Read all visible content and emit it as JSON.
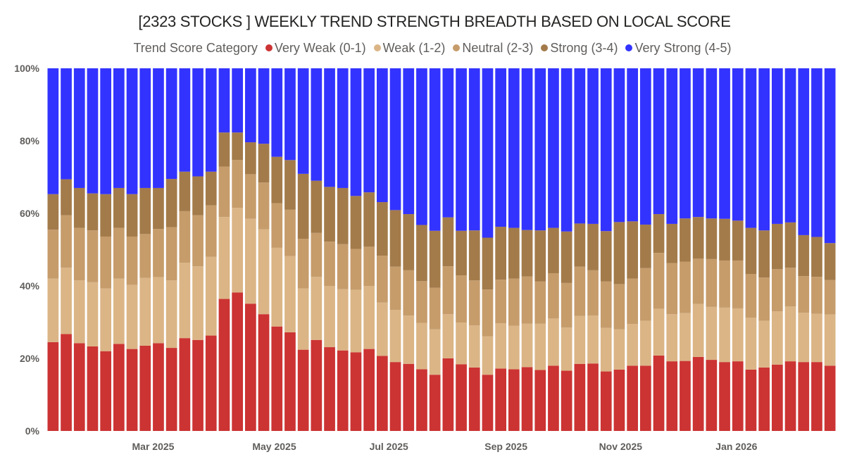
{
  "chart_data": {
    "type": "bar",
    "stacking": "percent",
    "title": "[2323 STOCKS ] WEEKLY TREND STRENGTH BREADTH BASED ON LOCAL SCORE",
    "legend_title": "Trend Score Category",
    "legend_position": "top-center",
    "xlabel": "",
    "ylabel": "",
    "ylim": [
      0,
      100
    ],
    "y_ticks": [
      "0%",
      "20%",
      "40%",
      "60%",
      "80%",
      "100%"
    ],
    "y_tick_values": [
      0,
      20,
      40,
      60,
      80,
      100
    ],
    "x_ticks": [
      {
        "label": "Mar 2025",
        "at_week": 7.6
      },
      {
        "label": "May 2025",
        "at_week": 16.8
      },
      {
        "label": "Jul 2025",
        "at_week": 25.5
      },
      {
        "label": "Sep 2025",
        "at_week": 34.4
      },
      {
        "label": "Nov 2025",
        "at_week": 43.1
      },
      {
        "label": "Jan 2026",
        "at_week": 51.9
      }
    ],
    "grid": false,
    "weeks": 60,
    "series": [
      {
        "name": "Very Weak (0-1)",
        "color": "#CC3333",
        "values": [
          24.5,
          26.7,
          24.2,
          23.3,
          22,
          24,
          22.6,
          23.5,
          24.2,
          22.9,
          25.6,
          25.1,
          26.3,
          36.4,
          38.2,
          35.1,
          32.2,
          28.8,
          27.2,
          22.4,
          25.1,
          23.1,
          22.2,
          21.7,
          22.6,
          20.7,
          19,
          18.5,
          17,
          15.5,
          20,
          18.4,
          17.5,
          15.5,
          17.2,
          17,
          17.6,
          16.8,
          18,
          16.6,
          18.5,
          18.6,
          16.4,
          16.9,
          18,
          18,
          20.8,
          19.2,
          19.3,
          20.4,
          19.6,
          19,
          19.2,
          16.9,
          17.5,
          18.3,
          19.2,
          19,
          19,
          18
        ]
      },
      {
        "name": "Weak (1-2)",
        "color": "#DBB586",
        "values": [
          17.5,
          18.3,
          17.3,
          17.7,
          17.3,
          18,
          17.7,
          18.7,
          18.2,
          18.6,
          20.8,
          20.3,
          21.7,
          22.6,
          23.3,
          23.4,
          23.4,
          21.7,
          21,
          16.9,
          17.4,
          16.9,
          16.9,
          17.2,
          17.4,
          14.7,
          14.4,
          13.3,
          12.8,
          12.5,
          12.2,
          11.5,
          11.6,
          10.6,
          12.5,
          12,
          12,
          12.8,
          13,
          11.9,
          13.2,
          13.2,
          12,
          11.1,
          11.5,
          12.4,
          12.9,
          13,
          13.2,
          14.6,
          14.6,
          15,
          14.6,
          14.3,
          12.9,
          14.7,
          15.1,
          13.6,
          13.3,
          14.1
        ]
      },
      {
        "name": "Neutral (2-3)",
        "color": "#C69C6B",
        "values": [
          13.5,
          14.5,
          14.5,
          14.3,
          14.3,
          14,
          13.3,
          12.1,
          13.3,
          14.7,
          14.2,
          14.1,
          14.2,
          13.9,
          13.2,
          12.3,
          12.9,
          12.3,
          12.8,
          13.7,
          12.1,
          12.2,
          12.4,
          11.3,
          10.8,
          12.9,
          11.9,
          12.5,
          11.5,
          11.5,
          13.2,
          13,
          12.4,
          12.9,
          12,
          13,
          13,
          11.6,
          12.5,
          12.3,
          13.6,
          12.5,
          12.8,
          12.5,
          12.5,
          14.5,
          15.4,
          14.1,
          14.2,
          12.5,
          13.2,
          13,
          13.2,
          12.1,
          11.9,
          11.6,
          10.7,
          10.1,
          10.2,
          9.5
        ]
      },
      {
        "name": "Strong (3-4)",
        "color": "#A37B4A",
        "values": [
          9.8,
          9.9,
          11,
          10.2,
          11.7,
          11,
          11.7,
          12.7,
          11.3,
          13.3,
          10.9,
          10.7,
          9.3,
          9.4,
          7.6,
          8.8,
          10.7,
          12.8,
          13.7,
          17.9,
          14.4,
          15.1,
          15.5,
          14.6,
          15,
          14.8,
          15.6,
          15.5,
          15.5,
          15.7,
          13.5,
          12.3,
          13.8,
          14.3,
          14.6,
          14,
          12.8,
          14.1,
          12.5,
          14.2,
          11.9,
          12.8,
          13.9,
          17.1,
          15.8,
          12,
          10.7,
          10.8,
          11.9,
          11.5,
          11.2,
          11.5,
          11,
          12.7,
          13,
          12.5,
          12.5,
          11.3,
          11,
          10.2
        ]
      },
      {
        "name": "Very Strong (4-5)",
        "color": "#3333FF",
        "values": [
          34.7,
          30.6,
          33,
          34.5,
          34.7,
          33,
          34.7,
          33,
          33,
          30.5,
          28.5,
          29.8,
          28.5,
          17.7,
          17.7,
          20.4,
          20.8,
          24.4,
          25.3,
          29.1,
          31,
          32.7,
          33,
          35.2,
          34.2,
          36.9,
          39.1,
          40.2,
          43.2,
          44.8,
          41.1,
          44.8,
          44.7,
          46.7,
          43.7,
          44,
          44.6,
          44.7,
          44,
          45,
          42.8,
          42.9,
          44.9,
          42.4,
          42.2,
          43.1,
          40.2,
          42.9,
          41.4,
          41,
          41.4,
          41.5,
          42,
          44,
          44.7,
          42.9,
          42.5,
          46,
          46.5,
          48.2
        ]
      }
    ]
  }
}
